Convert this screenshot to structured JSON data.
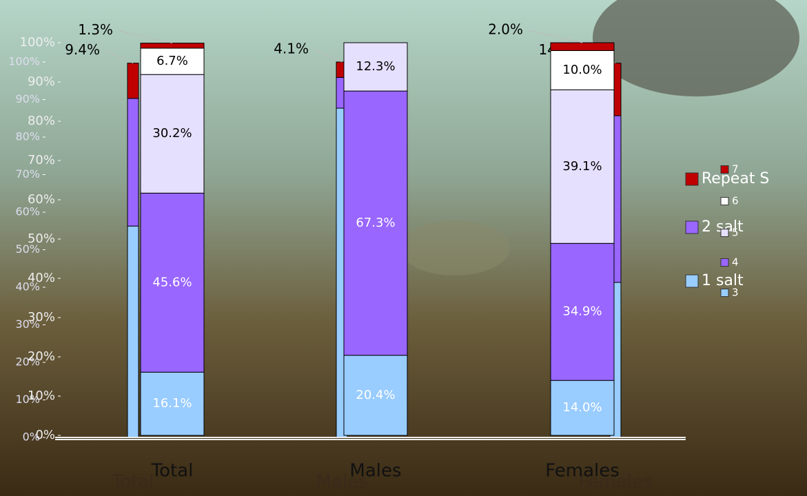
{
  "chart_data": [
    {
      "type": "bar",
      "stacked": true,
      "categories": [
        "Total",
        "Males",
        "Females"
      ],
      "series": [
        {
          "name": "1 salt",
          "color": "#99ccff",
          "values": [
            56.3,
            87.7,
            41.3
          ]
        },
        {
          "name": "2 salt",
          "color": "#9966ff",
          "values": [
            34.0,
            8.2,
            44.4
          ]
        },
        {
          "name": "Repeat S",
          "color": "#c00000",
          "values": [
            9.4,
            4.1,
            14.0
          ],
          "value_labels": [
            "9.4%",
            "4.1%",
            "14.0%"
          ]
        }
      ],
      "ylim": [
        0,
        100
      ],
      "yticks": [
        {
          "value": 0,
          "label": "0%"
        },
        {
          "value": 10,
          "label": "10%"
        },
        {
          "value": 20,
          "label": "20%"
        },
        {
          "value": 30,
          "label": "30%"
        },
        {
          "value": 40,
          "label": "40%"
        },
        {
          "value": 50,
          "label": "50%"
        },
        {
          "value": 60,
          "label": "60%"
        },
        {
          "value": 70,
          "label": "70%"
        },
        {
          "value": 80,
          "label": "80%"
        },
        {
          "value": 90,
          "label": "90%"
        },
        {
          "value": 100,
          "label": "100%"
        }
      ]
    },
    {
      "type": "bar",
      "stacked": true,
      "categories": [
        "Total",
        "Males",
        "Females"
      ],
      "series": [
        {
          "name": "3",
          "color": "#99ccff",
          "values": [
            16.1,
            20.4,
            14.0
          ],
          "value_labels": [
            "16.1%",
            "20.4%",
            "14.0%"
          ]
        },
        {
          "name": "4",
          "color": "#9966ff",
          "values": [
            45.6,
            67.3,
            34.9
          ],
          "value_labels": [
            "45.6%",
            "67.3%",
            "34.9%"
          ]
        },
        {
          "name": "5",
          "color": "#e6e0ff",
          "values": [
            30.2,
            12.3,
            39.1
          ],
          "value_labels": [
            "30.2%",
            "12.3%",
            "39.1%"
          ]
        },
        {
          "name": "6",
          "color": "#ffffff",
          "values": [
            6.7,
            null,
            10.0
          ],
          "value_labels": [
            "6.7%",
            null,
            "10.0%"
          ]
        },
        {
          "name": "7",
          "color": "#c00000",
          "values": [
            1.3,
            null,
            2.0
          ],
          "value_labels": [
            "1.3%",
            null,
            "2.0%"
          ]
        }
      ],
      "ylim": [
        0,
        100
      ],
      "yticks": [
        {
          "value": 0,
          "label": "0%"
        },
        {
          "value": 10,
          "label": "10%"
        },
        {
          "value": 20,
          "label": "20%"
        },
        {
          "value": 30,
          "label": "30%"
        },
        {
          "value": 40,
          "label": "40%"
        },
        {
          "value": 50,
          "label": "50%"
        },
        {
          "value": 60,
          "label": "60%"
        },
        {
          "value": 70,
          "label": "70%"
        },
        {
          "value": 80,
          "label": "80%"
        },
        {
          "value": 90,
          "label": "90%"
        },
        {
          "value": 100,
          "label": "100%"
        }
      ]
    }
  ]
}
